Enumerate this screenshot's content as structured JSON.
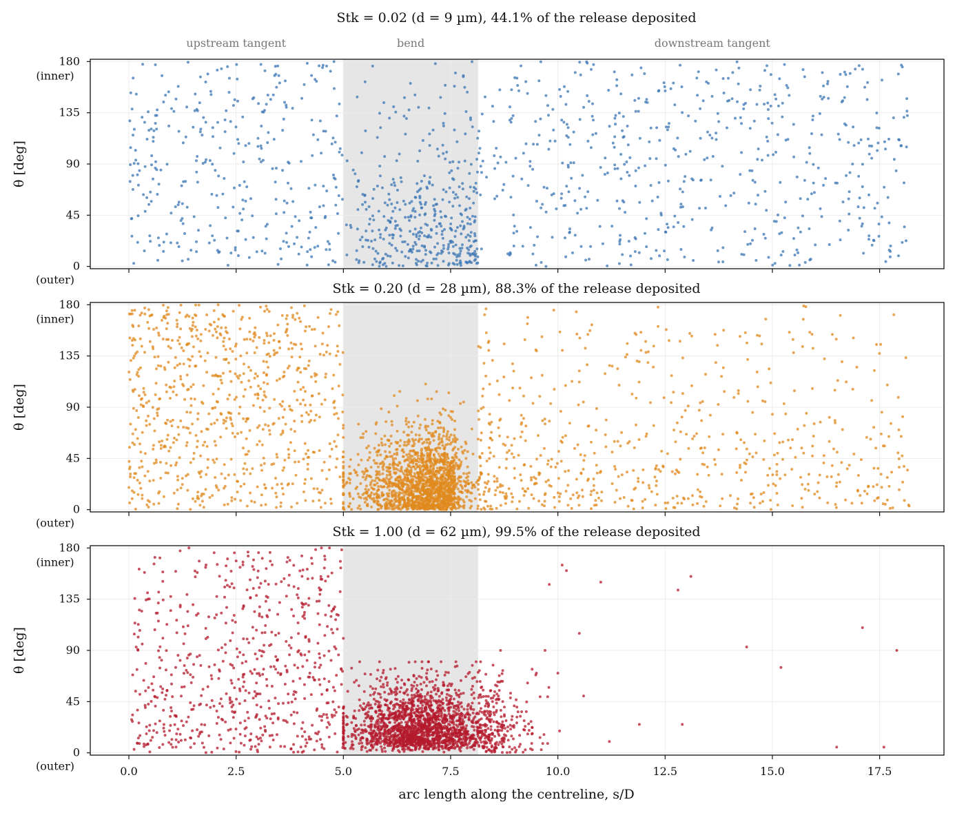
{
  "chart_data": {
    "type": "scatter",
    "xlabel": "arc length along the centreline, s/D",
    "xlim": [
      -0.9,
      19.0
    ],
    "x_ticks": [
      0.0,
      2.5,
      5.0,
      7.5,
      10.0,
      12.5,
      15.0,
      17.5
    ],
    "x_tick_labels": [
      "0.0",
      "2.5",
      "5.0",
      "7.5",
      "10.0",
      "12.5",
      "15.0",
      "17.5"
    ],
    "shared_x_axis": true,
    "grid": true,
    "bend_region": [
      5.0,
      8.14
    ],
    "region_labels": [
      {
        "text": "upstream tangent",
        "x": 2.5
      },
      {
        "text": "bend",
        "x": 6.57
      },
      {
        "text": "downstream tangent",
        "x": 13.6
      }
    ],
    "panels": [
      {
        "title": "Stk = 0.02 (d = 9 µm), 44.1% of the release deposited",
        "ylabel": "θ [deg]",
        "ylim": [
          -2,
          182
        ],
        "y_ticks": [
          0,
          45,
          90,
          135,
          180
        ],
        "y_tick_labels": [
          "0",
          "45",
          "90",
          "135",
          "180"
        ],
        "y_end_labels": {
          "inner": "(inner)",
          "outer": "(outer)"
        },
        "color": "#3b75b4",
        "deposited_percent": 44.1,
        "distribution": {
          "x_range": [
            0.0,
            18.2
          ],
          "counts_by_region": {
            "upstream": 330,
            "bend": 420,
            "downstream": 560
          },
          "theta_in_tangents": "roughly uniform over 0-180",
          "theta_in_bend": "concentrated below about 110, densest at 0-70 near s/D 7.5-8.1"
        }
      },
      {
        "title": "Stk = 0.20 (d = 28 µm), 88.3% of the release deposited",
        "ylabel": "θ [deg]",
        "ylim": [
          -2,
          182
        ],
        "y_ticks": [
          0,
          45,
          90,
          135,
          180
        ],
        "y_tick_labels": [
          "0",
          "45",
          "90",
          "135",
          "180"
        ],
        "y_end_labels": {
          "inner": "(inner)",
          "outer": "(outer)"
        },
        "color": "#e08a1e",
        "deposited_percent": 88.3,
        "distribution": {
          "x_range": [
            0.0,
            18.2
          ],
          "counts_by_region": {
            "upstream": 760,
            "bend": 1700,
            "downstream": 650
          },
          "theta_in_tangents": "spread over 0-180, thinning downstream",
          "theta_in_bend": "dense cloud at 0-60 peaking near s/D 7.6, theta about 20"
        }
      },
      {
        "title": "Stk = 1.00 (d = 62 µm), 99.5% of the release deposited",
        "ylabel": "θ [deg]",
        "ylim": [
          -2,
          182
        ],
        "y_ticks": [
          0,
          45,
          90,
          135,
          180
        ],
        "y_tick_labels": [
          "0",
          "45",
          "90",
          "135",
          "180"
        ],
        "y_end_labels": {
          "inner": "(inner)",
          "outer": "(outer)"
        },
        "color": "#b41a2c",
        "deposited_percent": 99.5,
        "distribution": {
          "x_range": [
            0.0,
            18.0
          ],
          "counts_by_region": {
            "upstream": 650,
            "bend": 1900,
            "downstream": 190
          },
          "theta_in_tangents": "upstream spread over 0-180; downstream only sparse isolated points",
          "theta_in_bend": "very dense cloud at 0-80 centred near s/D 6.8, theta about 20"
        }
      }
    ]
  }
}
